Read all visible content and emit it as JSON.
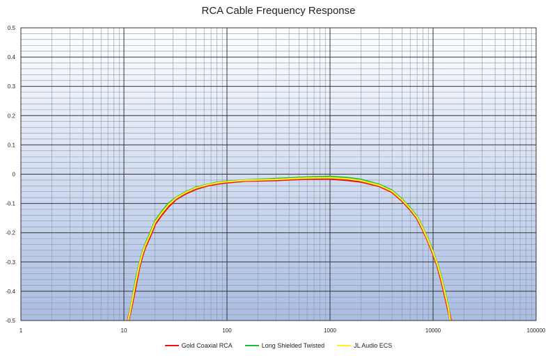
{
  "chart_data": {
    "type": "line",
    "title": "RCA Cable Frequency Response",
    "xlabel": "",
    "ylabel": "",
    "x_scale": "log",
    "xlim": [
      1,
      100000
    ],
    "ylim": [
      -0.5,
      0.5
    ],
    "x_ticks": [
      "1",
      "10",
      "100",
      "1000",
      "10000",
      "100000"
    ],
    "y_ticks": [
      "0.5",
      "0.4",
      "0.3",
      "0.2",
      "0.1",
      "0",
      "-0.1",
      "-0.2",
      "-0.3",
      "-0.4",
      "-0.5"
    ],
    "grid": true,
    "legend_position": "bottom",
    "series": [
      {
        "name": "Gold Coaxial RCA",
        "color": "#ee1111",
        "points": [
          [
            11,
            -0.5
          ],
          [
            12,
            -0.44
          ],
          [
            13,
            -0.38
          ],
          [
            14,
            -0.32
          ],
          [
            15,
            -0.28
          ],
          [
            16,
            -0.25
          ],
          [
            18,
            -0.21
          ],
          [
            20,
            -0.17
          ],
          [
            23,
            -0.14
          ],
          [
            27,
            -0.11
          ],
          [
            32,
            -0.085
          ],
          [
            40,
            -0.065
          ],
          [
            50,
            -0.05
          ],
          [
            65,
            -0.038
          ],
          [
            80,
            -0.032
          ],
          [
            100,
            -0.028
          ],
          [
            150,
            -0.022
          ],
          [
            300,
            -0.02
          ],
          [
            600,
            -0.015
          ],
          [
            1000,
            -0.015
          ],
          [
            1500,
            -0.02
          ],
          [
            2000,
            -0.025
          ],
          [
            3000,
            -0.04
          ],
          [
            4000,
            -0.06
          ],
          [
            5000,
            -0.09
          ],
          [
            6000,
            -0.12
          ],
          [
            7000,
            -0.15
          ],
          [
            8000,
            -0.19
          ],
          [
            9000,
            -0.23
          ],
          [
            10000,
            -0.27
          ],
          [
            11000,
            -0.31
          ],
          [
            12000,
            -0.36
          ],
          [
            13000,
            -0.41
          ],
          [
            14000,
            -0.46
          ],
          [
            14800,
            -0.5
          ]
        ]
      },
      {
        "name": "Long Shielded Twisted",
        "color": "#22bb33",
        "points": [
          [
            11,
            -0.5
          ],
          [
            12,
            -0.43
          ],
          [
            13,
            -0.36
          ],
          [
            14,
            -0.31
          ],
          [
            15,
            -0.27
          ],
          [
            16,
            -0.24
          ],
          [
            18,
            -0.2
          ],
          [
            20,
            -0.16
          ],
          [
            23,
            -0.13
          ],
          [
            27,
            -0.1
          ],
          [
            32,
            -0.08
          ],
          [
            40,
            -0.06
          ],
          [
            50,
            -0.045
          ],
          [
            65,
            -0.035
          ],
          [
            80,
            -0.028
          ],
          [
            100,
            -0.025
          ],
          [
            150,
            -0.02
          ],
          [
            300,
            -0.015
          ],
          [
            600,
            -0.01
          ],
          [
            1000,
            -0.008
          ],
          [
            1500,
            -0.012
          ],
          [
            2000,
            -0.018
          ],
          [
            3000,
            -0.035
          ],
          [
            4000,
            -0.055
          ],
          [
            5000,
            -0.085
          ],
          [
            6000,
            -0.115
          ],
          [
            7000,
            -0.145
          ],
          [
            8000,
            -0.185
          ],
          [
            9000,
            -0.225
          ],
          [
            10000,
            -0.265
          ],
          [
            11000,
            -0.305
          ],
          [
            12000,
            -0.35
          ],
          [
            13000,
            -0.4
          ],
          [
            14000,
            -0.45
          ],
          [
            14600,
            -0.5
          ]
        ]
      },
      {
        "name": "JL Audio ECS",
        "color": "#ffee22",
        "points": [
          [
            11,
            -0.5
          ],
          [
            12,
            -0.435
          ],
          [
            13,
            -0.37
          ],
          [
            14,
            -0.315
          ],
          [
            15,
            -0.275
          ],
          [
            16,
            -0.245
          ],
          [
            18,
            -0.205
          ],
          [
            20,
            -0.165
          ],
          [
            23,
            -0.135
          ],
          [
            27,
            -0.105
          ],
          [
            32,
            -0.082
          ],
          [
            40,
            -0.062
          ],
          [
            50,
            -0.047
          ],
          [
            65,
            -0.036
          ],
          [
            80,
            -0.03
          ],
          [
            100,
            -0.026
          ],
          [
            150,
            -0.021
          ],
          [
            300,
            -0.018
          ],
          [
            600,
            -0.013
          ],
          [
            1000,
            -0.012
          ],
          [
            1500,
            -0.016
          ],
          [
            2000,
            -0.022
          ],
          [
            3000,
            -0.038
          ],
          [
            4000,
            -0.058
          ],
          [
            5000,
            -0.088
          ],
          [
            6000,
            -0.118
          ],
          [
            7000,
            -0.148
          ],
          [
            8000,
            -0.188
          ],
          [
            9000,
            -0.228
          ],
          [
            10000,
            -0.268
          ],
          [
            11000,
            -0.308
          ],
          [
            12000,
            -0.355
          ],
          [
            13000,
            -0.405
          ],
          [
            14000,
            -0.455
          ],
          [
            14700,
            -0.5
          ]
        ]
      }
    ]
  }
}
